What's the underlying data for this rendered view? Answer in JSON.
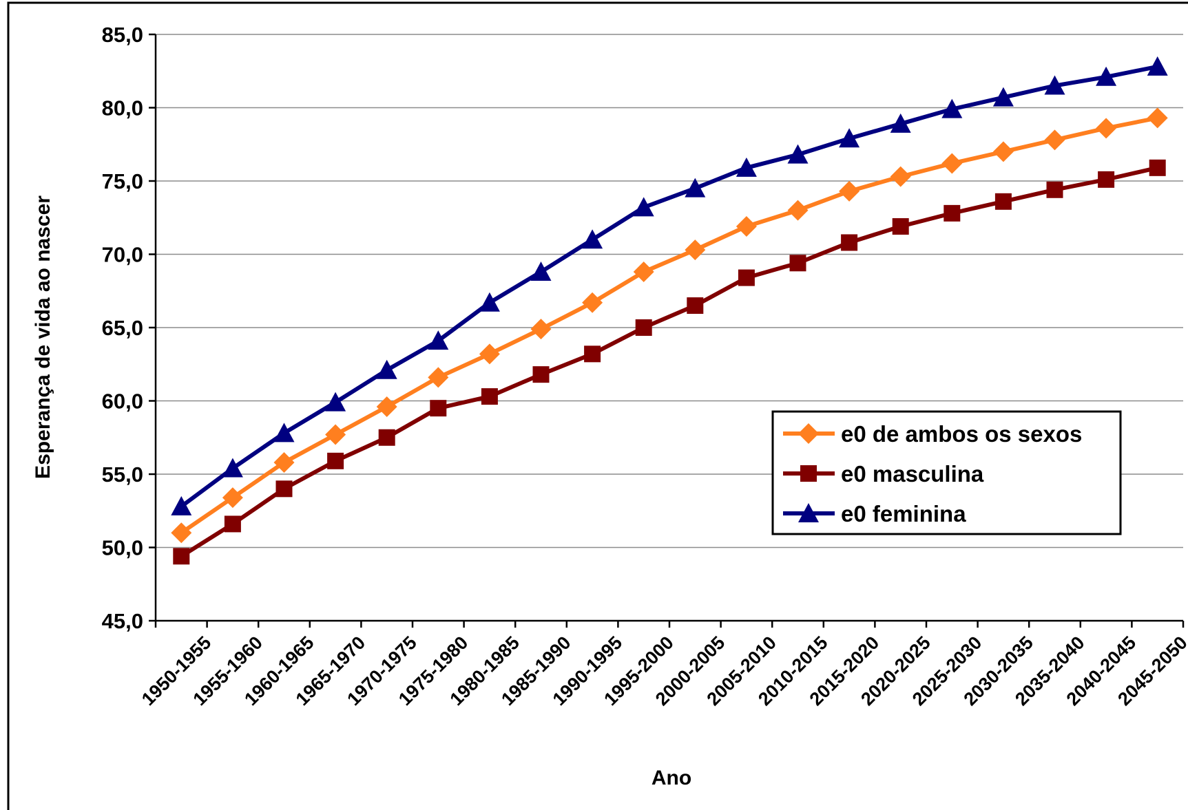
{
  "chart_data": {
    "type": "line",
    "title": "",
    "xlabel": "Ano",
    "ylabel": "Esperança de vida ao nascer",
    "ylim": [
      45,
      85
    ],
    "yticks": [
      "45,0",
      "50,0",
      "55,0",
      "60,0",
      "65,0",
      "70,0",
      "75,0",
      "80,0",
      "85,0"
    ],
    "grid": "horizontal",
    "legend_position": "right-middle",
    "categories": [
      "1950-1955",
      "1955-1960",
      "1960-1965",
      "1965-1970",
      "1970-1975",
      "1975-1980",
      "1980-1985",
      "1985-1990",
      "1990-1995",
      "1995-2000",
      "2000-2005",
      "2005-2010",
      "2010-2015",
      "2015-2020",
      "2020-2025",
      "2025-2030",
      "2030-2035",
      "2035-2040",
      "2040-2045",
      "2045-2050"
    ],
    "series": [
      {
        "name": "e0 de ambos os sexos",
        "color": "#ff7f1f",
        "marker": "diamond",
        "values": [
          51.0,
          53.4,
          55.8,
          57.7,
          59.6,
          61.6,
          63.2,
          64.9,
          66.7,
          68.8,
          70.3,
          71.9,
          73.0,
          74.3,
          75.3,
          76.2,
          77.0,
          77.8,
          78.6,
          79.3
        ]
      },
      {
        "name": "e0 masculina",
        "color": "#800000",
        "marker": "square",
        "values": [
          49.4,
          51.6,
          54.0,
          55.9,
          57.5,
          59.5,
          60.3,
          61.8,
          63.2,
          65.0,
          66.5,
          68.4,
          69.4,
          70.8,
          71.9,
          72.8,
          73.6,
          74.4,
          75.1,
          75.9
        ]
      },
      {
        "name": "e0 feminina",
        "color": "#000080",
        "marker": "triangle",
        "values": [
          52.8,
          55.4,
          57.8,
          59.9,
          62.1,
          64.1,
          66.7,
          68.8,
          71.0,
          73.2,
          74.5,
          75.9,
          76.8,
          77.9,
          78.9,
          79.9,
          80.7,
          81.5,
          82.1,
          82.8
        ]
      }
    ]
  }
}
